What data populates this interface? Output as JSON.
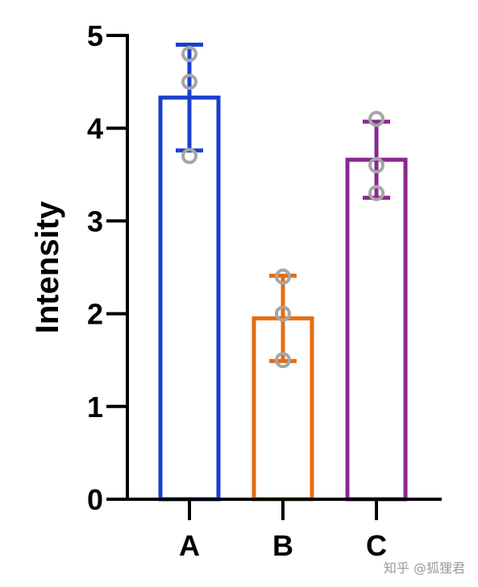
{
  "chart_data": {
    "type": "bar",
    "title": "",
    "xlabel": "",
    "ylabel": "Intensity",
    "ylim": [
      0,
      5
    ],
    "yticks": [
      "0",
      "1",
      "2",
      "3",
      "4",
      "5"
    ],
    "categories": [
      "A",
      "B",
      "C"
    ],
    "values": [
      4.33,
      1.95,
      3.66
    ],
    "error": [
      0.57,
      0.46,
      0.41
    ],
    "points": [
      [
        4.8,
        4.5,
        3.7
      ],
      [
        2.4,
        2.0,
        1.5
      ],
      [
        4.1,
        3.6,
        3.3
      ]
    ],
    "colors": [
      "#1a3fd1",
      "#e36e12",
      "#8a2a91"
    ],
    "point_color": "#a6a6a6",
    "grid": false,
    "legend": "none"
  },
  "watermark": "知乎 @狐狸君"
}
